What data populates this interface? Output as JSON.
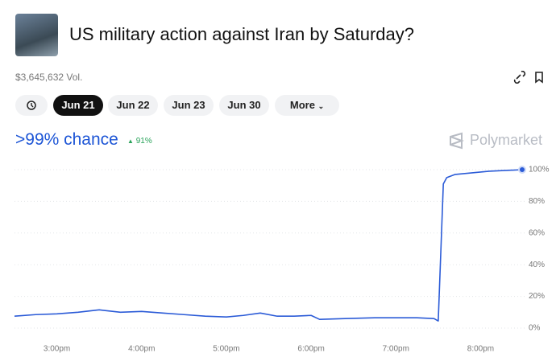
{
  "header": {
    "title": "US military action against Iran by Saturday?",
    "volume": "$3,645,632 Vol."
  },
  "tabs": [
    "Jun 21",
    "Jun 22",
    "Jun 23",
    "Jun 30",
    "More"
  ],
  "chance": {
    "text": ">99% chance",
    "change": "91%"
  },
  "brand": "Polymarket",
  "chart_data": {
    "type": "line",
    "x": [
      14.5,
      14.75,
      15.0,
      15.25,
      15.5,
      15.75,
      16.0,
      16.25,
      16.5,
      16.75,
      17.0,
      17.2,
      17.4,
      17.6,
      17.8,
      18.0,
      18.1,
      18.4,
      18.75,
      19.0,
      19.25,
      19.45,
      19.5,
      19.56,
      19.6,
      19.7,
      19.9,
      20.1,
      20.3,
      20.49
    ],
    "series": [
      {
        "color": "#2b5bd7",
        "values": [
          7.5,
          8.5,
          9,
          10,
          11.5,
          10,
          10.5,
          9.5,
          8.5,
          7.5,
          7,
          8,
          9.5,
          7.5,
          7.5,
          8,
          5.5,
          6,
          6.5,
          6.5,
          6.5,
          6,
          4.5,
          91,
          95,
          97,
          98,
          99,
          99.5,
          100
        ]
      }
    ],
    "xlim": [
      14.5,
      20.49
    ],
    "xticks": [
      {
        "value": 15,
        "label": "3:00pm"
      },
      {
        "value": 16,
        "label": "4:00pm"
      },
      {
        "value": 17,
        "label": "5:00pm"
      },
      {
        "value": 18,
        "label": "6:00pm"
      },
      {
        "value": 19,
        "label": "7:00pm"
      },
      {
        "value": 20,
        "label": "8:00pm"
      }
    ],
    "ylim": [
      0,
      100
    ],
    "yticks": [
      {
        "value": 0,
        "label": "0%"
      },
      {
        "value": 20,
        "label": "20%"
      },
      {
        "value": 40,
        "label": "40%"
      },
      {
        "value": 60,
        "label": "60%"
      },
      {
        "value": 80,
        "label": "80%"
      },
      {
        "value": 100,
        "label": "100%"
      }
    ],
    "grid": true
  }
}
